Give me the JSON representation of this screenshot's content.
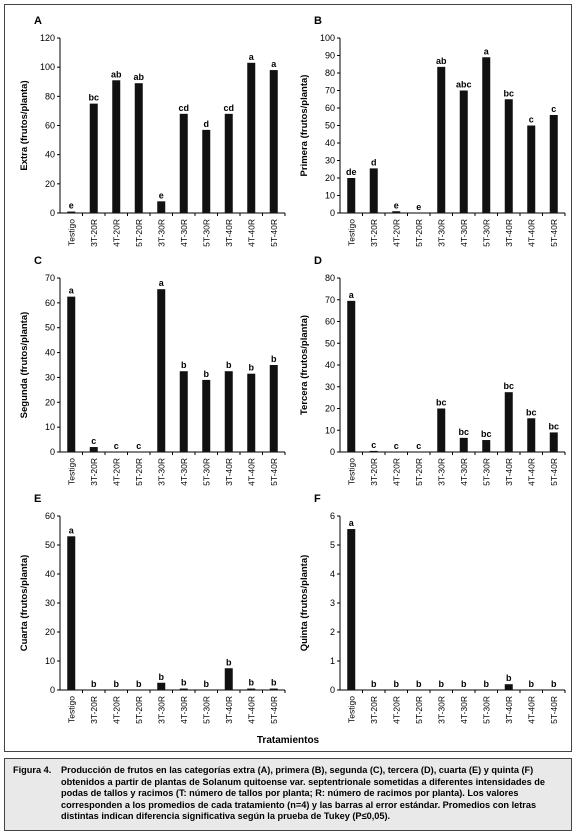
{
  "figure": {
    "x_axis_title": "Tratamientos",
    "caption_label": "Figura 4.",
    "caption_text": "Producción de frutos en las categorías extra (A), primera (B), segunda (C), tercera (D), cuarta (E) y quinta (F) obtenidos a partir de plantas de Solanum quitoense var. septentrionale sometidas a diferentes intensidades de podas de tallos y racimos (T: número de tallos por planta; R: número de racimos por planta). Los valores corresponden a los promedios de cada tratamiento (n=4) y las barras al error estándar. Promedios con letras distintas indican diferencia significativa según la prueba de Tukey (P≤0,05)."
  },
  "chart_data": [
    {
      "type": "bar",
      "panel": "A",
      "ylabel": "Extra (frutos/planta)",
      "categories": [
        "Testigo",
        "3T-20R",
        "4T-20R",
        "5T-20R",
        "3T-30R",
        "4T-30R",
        "5T-30R",
        "3T-40R",
        "4T-40R",
        "5T-40R"
      ],
      "values": [
        1,
        75,
        91,
        89,
        8,
        68,
        57,
        68,
        103,
        98
      ],
      "letters": [
        "e",
        "bc",
        "ab",
        "ab",
        "e",
        "cd",
        "d",
        "cd",
        "a",
        "a"
      ],
      "ylim": [
        0,
        120
      ],
      "yticks": [
        0,
        20,
        40,
        60,
        80,
        100,
        120
      ]
    },
    {
      "type": "bar",
      "panel": "B",
      "ylabel": "Primera (frutos/planta)",
      "categories": [
        "Testigo",
        "3T-20R",
        "4T-20R",
        "5T-20R",
        "3T-30R",
        "4T-30R",
        "5T-30R",
        "3T-40R",
        "4T-40R",
        "5T-40R"
      ],
      "values": [
        20,
        25.5,
        1,
        0,
        83.5,
        70,
        89,
        65,
        50,
        56
      ],
      "letters": [
        "de",
        "d",
        "e",
        "e",
        "ab",
        "abc",
        "a",
        "bc",
        "c",
        "c"
      ],
      "ylim": [
        0,
        100
      ],
      "yticks": [
        0,
        10,
        20,
        30,
        40,
        50,
        60,
        70,
        80,
        90,
        100
      ]
    },
    {
      "type": "bar",
      "panel": "C",
      "ylabel": "Segunda (frutos/planta)",
      "categories": [
        "Testigo",
        "3T-20R",
        "4T-20R",
        "5T-20R",
        "3T-30R",
        "4T-30R",
        "5T-30R",
        "3T-40R",
        "4T-40R",
        "5T-40R"
      ],
      "values": [
        62.5,
        2,
        0,
        0,
        65.5,
        32.5,
        29,
        32.5,
        31.5,
        35
      ],
      "letters": [
        "a",
        "c",
        "c",
        "c",
        "a",
        "b",
        "b",
        "b",
        "b",
        "b"
      ],
      "ylim": [
        0,
        70
      ],
      "yticks": [
        0,
        10,
        20,
        30,
        40,
        50,
        60,
        70
      ]
    },
    {
      "type": "bar",
      "panel": "D",
      "ylabel": "Tercera (frutos/planta)",
      "categories": [
        "Testigo",
        "3T-20R",
        "4T-20R",
        "5T-20R",
        "3T-30R",
        "4T-30R",
        "5T-30R",
        "3T-40R",
        "4T-40R",
        "5T-40R"
      ],
      "values": [
        69.5,
        0.5,
        0,
        0,
        20,
        6.5,
        5.5,
        27.5,
        15.5,
        9
      ],
      "letters": [
        "a",
        "c",
        "c",
        "c",
        "bc",
        "bc",
        "bc",
        "bc",
        "bc",
        "bc"
      ],
      "ylim": [
        0,
        80
      ],
      "yticks": [
        0,
        10,
        20,
        30,
        40,
        50,
        60,
        70,
        80
      ]
    },
    {
      "type": "bar",
      "panel": "E",
      "ylabel": "Cuarta (frutos/planta)",
      "categories": [
        "Testigo",
        "3T-20R",
        "4T-20R",
        "5T-20R",
        "3T-30R",
        "4T-30R",
        "5T-30R",
        "3T-40R",
        "4T-40R",
        "5T-40R"
      ],
      "values": [
        53,
        0,
        0,
        0,
        2.5,
        0.5,
        0,
        7.5,
        0.5,
        0.5
      ],
      "letters": [
        "a",
        "b",
        "b",
        "b",
        "b",
        "b",
        "b",
        "b",
        "b",
        "b"
      ],
      "ylim": [
        0,
        60
      ],
      "yticks": [
        0,
        10,
        20,
        30,
        40,
        50,
        60
      ]
    },
    {
      "type": "bar",
      "panel": "F",
      "ylabel": "Quinta (frutos/planta)",
      "categories": [
        "Testigo",
        "3T-20R",
        "4T-20R",
        "5T-20R",
        "3T-30R",
        "4T-30R",
        "5T-30R",
        "3T-40R",
        "4T-40R",
        "5T-40R"
      ],
      "values": [
        5.55,
        0,
        0,
        0,
        0,
        0,
        0,
        0.2,
        0,
        0
      ],
      "letters": [
        "a",
        "b",
        "b",
        "b",
        "b",
        "b",
        "b",
        "b",
        "b",
        "b"
      ],
      "ylim": [
        0,
        6
      ],
      "yticks": [
        0,
        1,
        2,
        3,
        4,
        5,
        6
      ]
    }
  ]
}
